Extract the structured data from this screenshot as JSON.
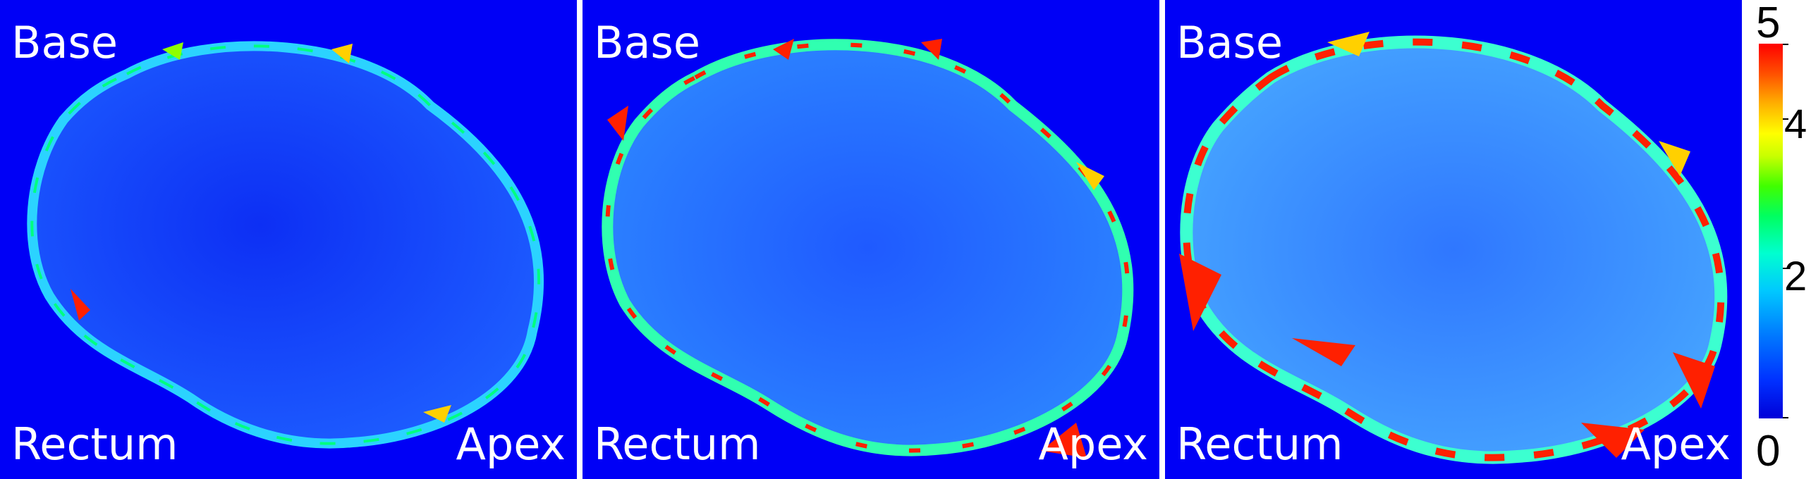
{
  "labels": {
    "base": "Base",
    "rectum": "Rectum",
    "apex": "Apex"
  },
  "colors": {
    "background": "#0000f6",
    "organ_fill_low": "#1a3cf0",
    "organ_fill_mid": "#2f7fff",
    "edge_high": "#ff1a00",
    "edge_mid": "#c8ff00"
  },
  "colorbar": {
    "min_label": "0",
    "max_label": "5",
    "tick_labels": [
      "2",
      "4"
    ],
    "colormap": "jet"
  },
  "panels": [
    {
      "edge_error_level": "low"
    },
    {
      "edge_error_level": "medium"
    },
    {
      "edge_error_level": "high"
    }
  ]
}
